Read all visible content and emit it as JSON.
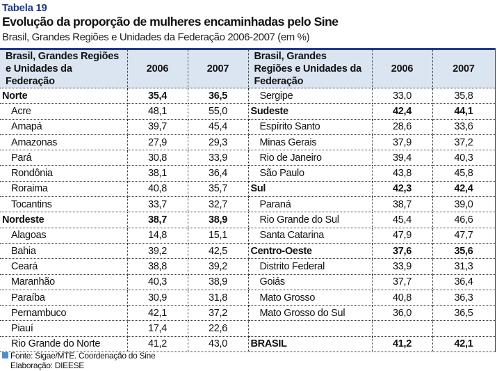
{
  "label": "Tabela 19",
  "title": "Evolução da proporção de mulheres encaminhadas pelo Sine",
  "subtitle": "Brasil, Grandes Regiões e Unidades da Federação 2006-2007 (em %)",
  "headers": {
    "name": "Brasil, Grandes Regiões e Unidades da Federação",
    "y1": "2006",
    "y2": "2007"
  },
  "left": [
    {
      "name": "Norte",
      "bold": true,
      "v2006": "35,4",
      "v2007": "36,5"
    },
    {
      "name": "Acre",
      "v2006": "48,1",
      "v2007": "55,0"
    },
    {
      "name": "Amapá",
      "v2006": "39,7",
      "v2007": "45,4"
    },
    {
      "name": "Amazonas",
      "v2006": "27,9",
      "v2007": "29,3"
    },
    {
      "name": "Pará",
      "v2006": "30,8",
      "v2007": "33,9"
    },
    {
      "name": "Rondônia",
      "v2006": "38,1",
      "v2007": "36,4"
    },
    {
      "name": "Roraima",
      "v2006": "40,8",
      "v2007": "35,7"
    },
    {
      "name": "Tocantins",
      "v2006": "33,7",
      "v2007": "32,7"
    },
    {
      "name": "Nordeste",
      "bold": true,
      "v2006": "38,7",
      "v2007": "38,9"
    },
    {
      "name": "Alagoas",
      "v2006": "14,8",
      "v2007": "15,1"
    },
    {
      "name": "Bahia",
      "v2006": "39,2",
      "v2007": "42,5"
    },
    {
      "name": "Ceará",
      "v2006": "38,8",
      "v2007": "39,2"
    },
    {
      "name": "Maranhão",
      "v2006": "40,3",
      "v2007": "38,9"
    },
    {
      "name": "Paraíba",
      "v2006": "30,9",
      "v2007": "31,8"
    },
    {
      "name": "Pernambuco",
      "v2006": "42,1",
      "v2007": "37,2"
    },
    {
      "name": "Piauí",
      "v2006": "17,4",
      "v2007": "22,6"
    },
    {
      "name": "Rio Grande do Norte",
      "v2006": "41,2",
      "v2007": "43,0"
    }
  ],
  "right": [
    {
      "name": "Sergipe",
      "v2006": "33,0",
      "v2007": "35,8"
    },
    {
      "name": "Sudeste",
      "bold": true,
      "v2006": "42,4",
      "v2007": "44,1"
    },
    {
      "name": "Espírito Santo",
      "v2006": "28,6",
      "v2007": "33,6"
    },
    {
      "name": "Minas Gerais",
      "v2006": "37,9",
      "v2007": "37,2"
    },
    {
      "name": "Rio de Janeiro",
      "v2006": "39,4",
      "v2007": "40,3"
    },
    {
      "name": "São Paulo",
      "v2006": "43,8",
      "v2007": "45,8"
    },
    {
      "name": "Sul",
      "bold": true,
      "v2006": "42,3",
      "v2007": "42,4"
    },
    {
      "name": "Paraná",
      "v2006": "38,7",
      "v2007": "39,0"
    },
    {
      "name": "Rio Grande do Sul",
      "v2006": "45,4",
      "v2007": "46,6"
    },
    {
      "name": "Santa Catarina",
      "v2006": "47,9",
      "v2007": "47,7"
    },
    {
      "name": "Centro-Oeste",
      "bold": true,
      "v2006": "37,6",
      "v2007": "35,6"
    },
    {
      "name": "Distrito Federal",
      "v2006": "33,9",
      "v2007": "31,3"
    },
    {
      "name": "Goiás",
      "v2006": "37,7",
      "v2007": "36,4"
    },
    {
      "name": "Mato Grosso",
      "v2006": "40,8",
      "v2007": "36,3"
    },
    {
      "name": "Mato Grosso do Sul",
      "v2006": "36,0",
      "v2007": "36,5"
    },
    {
      "name": "",
      "v2006": "",
      "v2007": ""
    },
    {
      "name": "BRASIL",
      "bold": true,
      "v2006": "41,2",
      "v2007": "42,1"
    }
  ],
  "footer": {
    "source": "Fonte: Sigae/MTE. Coordenação do Sine",
    "elab": "Elaboração: DIEESE"
  }
}
